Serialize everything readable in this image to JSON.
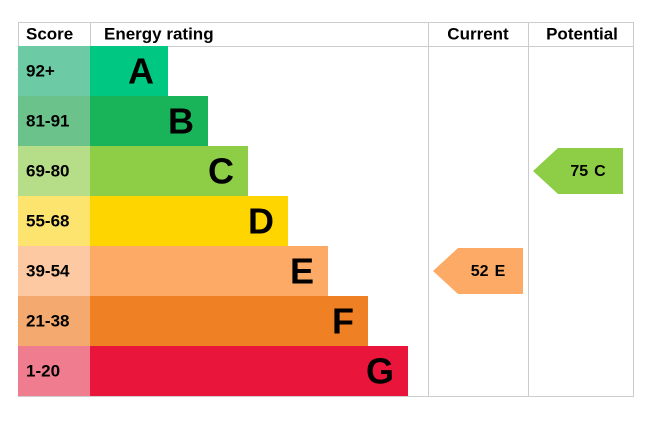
{
  "header": {
    "score": "Score",
    "rating": "Energy rating",
    "current": "Current",
    "potential": "Potential"
  },
  "bands": [
    {
      "score": "92+",
      "letter": "A",
      "color": "#00c781",
      "light": "#6ccba4"
    },
    {
      "score": "81-91",
      "letter": "B",
      "color": "#19b459",
      "light": "#6bc28a"
    },
    {
      "score": "69-80",
      "letter": "C",
      "color": "#8dce46",
      "light": "#b6dd87"
    },
    {
      "score": "55-68",
      "letter": "D",
      "color": "#ffd500",
      "light": "#fde46f"
    },
    {
      "score": "39-54",
      "letter": "E",
      "color": "#fcaa65",
      "light": "#fcc9a2"
    },
    {
      "score": "21-38",
      "letter": "F",
      "color": "#ef8023",
      "light": "#f4aa6f"
    },
    {
      "score": "1-20",
      "letter": "G",
      "color": "#e9153b",
      "light": "#f07d8f"
    }
  ],
  "current": {
    "value": "52",
    "letter": "E"
  },
  "potential": {
    "value": "75",
    "letter": "C"
  }
}
